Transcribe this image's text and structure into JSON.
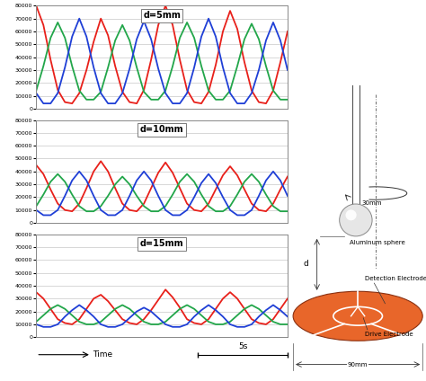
{
  "chart_data": [
    {
      "type": "line",
      "title": "d=5mm",
      "tick_labels": "y",
      "grid": true,
      "x": [
        0.0,
        0.4,
        0.8,
        1.2,
        1.6,
        2.0,
        2.4,
        2.8,
        3.2,
        3.6,
        4.0,
        4.4,
        4.8,
        5.2,
        5.6,
        6.0,
        6.4,
        6.8,
        7.2,
        7.6,
        8.0,
        8.4,
        8.8,
        9.2,
        9.6,
        10.0,
        10.4,
        10.8,
        11.2,
        11.6,
        12.0,
        12.4,
        12.8,
        13.2,
        13.6,
        14.0
      ],
      "xlim": [
        0,
        14
      ],
      "ylim": [
        0,
        80000
      ],
      "yticks": [
        0,
        10000,
        20000,
        30000,
        40000,
        50000,
        60000,
        70000,
        80000
      ],
      "series": [
        {
          "color": "#e8201a",
          "values": [
            80000,
            65000,
            38000,
            14500,
            5000,
            4000,
            12000,
            30000,
            52000,
            70000,
            57000,
            33000,
            13000,
            5000,
            4000,
            14500,
            38000,
            65000,
            80000,
            65000,
            38000,
            14500,
            5000,
            4000,
            13000,
            34000,
            60000,
            76000,
            62000,
            36000,
            14000,
            5000,
            4000,
            14000,
            36000,
            60000
          ]
        },
        {
          "color": "#22a64a",
          "values": [
            14000,
            33000,
            55000,
            67000,
            55000,
            33000,
            14000,
            7000,
            7000,
            13000,
            32000,
            53000,
            65000,
            53000,
            32000,
            13000,
            7000,
            7000,
            14000,
            33000,
            55000,
            67000,
            55000,
            33000,
            14000,
            7000,
            7000,
            14000,
            33000,
            54000,
            66000,
            54000,
            33000,
            14000,
            7000,
            7000
          ]
        },
        {
          "color": "#1f3fd6",
          "values": [
            12000,
            4000,
            4000,
            12000,
            32000,
            56000,
            70000,
            56000,
            32000,
            12000,
            4000,
            4000,
            12000,
            31000,
            54000,
            68000,
            54000,
            31000,
            12000,
            4000,
            4000,
            12000,
            32000,
            56000,
            70000,
            56000,
            32000,
            12000,
            4000,
            4000,
            12000,
            30000,
            53000,
            67000,
            53000,
            30000
          ]
        }
      ]
    },
    {
      "type": "line",
      "title": "d=10mm",
      "tick_labels": "y",
      "grid": true,
      "x": [
        0.0,
        0.4,
        0.8,
        1.2,
        1.6,
        2.0,
        2.4,
        2.8,
        3.2,
        3.6,
        4.0,
        4.4,
        4.8,
        5.2,
        5.6,
        6.0,
        6.4,
        6.8,
        7.2,
        7.6,
        8.0,
        8.4,
        8.8,
        9.2,
        9.6,
        10.0,
        10.4,
        10.8,
        11.2,
        11.6,
        12.0,
        12.4,
        12.8,
        13.2,
        13.6,
        14.0
      ],
      "xlim": [
        0,
        14
      ],
      "ylim": [
        0,
        80000
      ],
      "yticks": [
        0,
        10000,
        20000,
        30000,
        40000,
        50000,
        60000,
        70000,
        80000
      ],
      "series": [
        {
          "color": "#e8201a",
          "values": [
            45000,
            38000,
            26000,
            15000,
            10000,
            9000,
            15000,
            27000,
            40000,
            48000,
            40000,
            27000,
            15000,
            10000,
            9000,
            15000,
            27000,
            39000,
            47000,
            39000,
            27000,
            15000,
            10000,
            9000,
            15000,
            26000,
            37000,
            44000,
            37000,
            26000,
            15000,
            10000,
            9000,
            15000,
            26000,
            36000
          ]
        },
        {
          "color": "#22a64a",
          "values": [
            13000,
            22000,
            32000,
            38000,
            32000,
            22000,
            13000,
            9000,
            9000,
            13000,
            21000,
            30000,
            36000,
            30000,
            21000,
            13000,
            9000,
            9000,
            13000,
            22000,
            32000,
            38000,
            32000,
            22000,
            13000,
            9000,
            9000,
            13000,
            22000,
            32000,
            38000,
            32000,
            22000,
            13000,
            9000,
            9000
          ]
        },
        {
          "color": "#1f3fd6",
          "values": [
            10000,
            6000,
            6000,
            10000,
            21000,
            33000,
            40000,
            33000,
            21000,
            10000,
            6000,
            6000,
            10000,
            21000,
            33000,
            40000,
            33000,
            21000,
            10000,
            6000,
            6000,
            10000,
            20000,
            31000,
            38000,
            31000,
            20000,
            10000,
            6000,
            6000,
            10000,
            21000,
            33000,
            40000,
            33000,
            21000
          ]
        }
      ]
    },
    {
      "type": "line",
      "title": "d=15mm",
      "tick_labels": "y",
      "grid": true,
      "x": [
        0.0,
        0.4,
        0.8,
        1.2,
        1.6,
        2.0,
        2.4,
        2.8,
        3.2,
        3.6,
        4.0,
        4.4,
        4.8,
        5.2,
        5.6,
        6.0,
        6.4,
        6.8,
        7.2,
        7.6,
        8.0,
        8.4,
        8.8,
        9.2,
        9.6,
        10.0,
        10.4,
        10.8,
        11.2,
        11.6,
        12.0,
        12.4,
        12.8,
        13.2,
        13.6,
        14.0
      ],
      "xlim": [
        0,
        14
      ],
      "ylim": [
        0,
        80000
      ],
      "yticks": [
        0,
        10000,
        20000,
        30000,
        40000,
        50000,
        60000,
        70000,
        80000
      ],
      "series": [
        {
          "color": "#e8201a",
          "values": [
            35000,
            30000,
            22000,
            14000,
            11000,
            10000,
            14000,
            22000,
            30000,
            33000,
            28000,
            21000,
            14000,
            11000,
            10000,
            14000,
            21000,
            29000,
            37000,
            31000,
            23000,
            14000,
            11000,
            10000,
            14000,
            22000,
            30000,
            35000,
            30000,
            22000,
            14000,
            11000,
            10000,
            14000,
            22000,
            30000
          ]
        },
        {
          "color": "#22a64a",
          "values": [
            12000,
            17000,
            22000,
            25000,
            22000,
            17000,
            12000,
            10000,
            10000,
            12000,
            17000,
            22000,
            25000,
            22000,
            17000,
            12000,
            10000,
            10000,
            12000,
            17000,
            22000,
            25000,
            22000,
            17000,
            12000,
            10000,
            10000,
            12000,
            17000,
            22000,
            25000,
            22000,
            17000,
            12000,
            10000,
            10000
          ]
        },
        {
          "color": "#1f3fd6",
          "values": [
            10000,
            8000,
            8000,
            10000,
            16000,
            21000,
            25000,
            21000,
            16000,
            10000,
            8000,
            8000,
            10000,
            15000,
            20000,
            23000,
            20000,
            15000,
            10000,
            8000,
            8000,
            10000,
            16000,
            21000,
            25000,
            21000,
            16000,
            10000,
            8000,
            8000,
            10000,
            16000,
            21000,
            25000,
            21000,
            16000
          ]
        }
      ]
    }
  ],
  "time_axis": {
    "label": "Time",
    "scale_bar": {
      "label": "5s",
      "seconds": 5
    }
  },
  "diagram": {
    "rotation_offset": "30mm",
    "sphere": "Aluminum sphere",
    "detection_electrode": "Detection Electrode",
    "drive_electrode": "Drive Electrode",
    "gap": "d",
    "diameter": "90mm"
  }
}
